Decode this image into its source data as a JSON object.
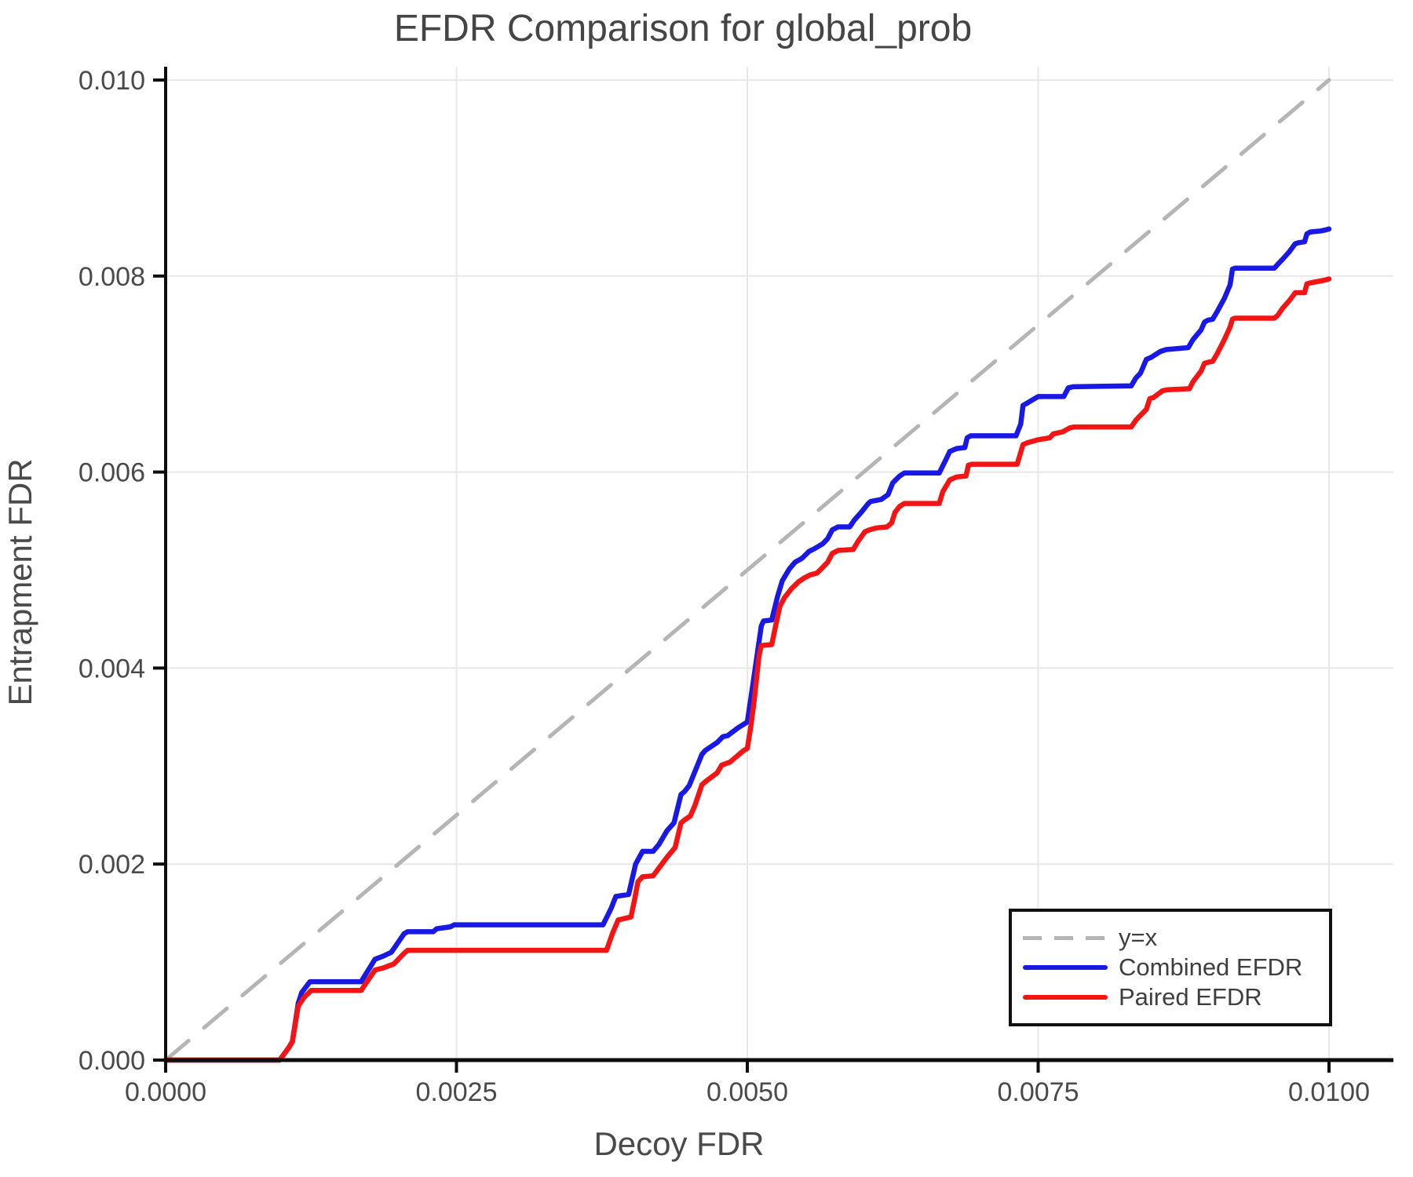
{
  "title": "EFDR Comparison for global_prob",
  "colors": {
    "combined": "#1919e6",
    "paired": "#f51414",
    "identity": "#b5b5b5",
    "grid": "#e8e8e8",
    "axis": "#0d0d0d",
    "text": "#4a4a4a"
  },
  "legend": {
    "identity_label": "y=x",
    "combined_label": "Combined EFDR",
    "paired_label": "Paired EFDR"
  },
  "chart_data": {
    "type": "line",
    "title": "EFDR Comparison for global_prob",
    "xlabel": "Decoy FDR",
    "ylabel": "Entrapment FDR",
    "xlim": [
      0,
      0.010553
    ],
    "ylim": [
      0,
      0.010136
    ],
    "grid": true,
    "legend_position": "bottom-right",
    "x_ticks": [
      {
        "value": 0.0,
        "label": "0.0000"
      },
      {
        "value": 0.0025,
        "label": "0.0025"
      },
      {
        "value": 0.005,
        "label": "0.0050"
      },
      {
        "value": 0.0075,
        "label": "0.0075"
      },
      {
        "value": 0.01,
        "label": "0.0100"
      }
    ],
    "y_ticks": [
      {
        "value": 0.0,
        "label": "0.000"
      },
      {
        "value": 0.002,
        "label": "0.002"
      },
      {
        "value": 0.004,
        "label": "0.004"
      },
      {
        "value": 0.006,
        "label": "0.006"
      },
      {
        "value": 0.008,
        "label": "0.008"
      },
      {
        "value": 0.01,
        "label": "0.010"
      }
    ],
    "series": [
      {
        "name": "y=x",
        "style": "dashed",
        "color": "#b5b5b5",
        "points": [
          [
            0,
            0
          ],
          [
            0.01,
            0.01
          ]
        ]
      },
      {
        "name": "Combined EFDR",
        "style": "solid",
        "color": "#1919e6",
        "points": [
          [
            0,
            0
          ],
          [
            0.00098,
            0
          ],
          [
            0.00106,
            0.00013
          ],
          [
            0.00109,
            0.00019
          ],
          [
            0.00114,
            0.00058
          ],
          [
            0.00117,
            0.00069
          ],
          [
            0.00124,
            0.0008
          ],
          [
            0.00168,
            0.0008
          ],
          [
            0.0018,
            0.00103
          ],
          [
            0.00187,
            0.00106
          ],
          [
            0.00194,
            0.0011
          ],
          [
            0.00205,
            0.00129
          ],
          [
            0.00208,
            0.00131
          ],
          [
            0.0023,
            0.00131
          ],
          [
            0.00233,
            0.00134
          ],
          [
            0.00245,
            0.00136
          ],
          [
            0.00248,
            0.00138
          ],
          [
            0.00376,
            0.00138
          ],
          [
            0.00383,
            0.00155
          ],
          [
            0.00387,
            0.00167
          ],
          [
            0.00398,
            0.00169
          ],
          [
            0.00404,
            0.002
          ],
          [
            0.0041,
            0.00213
          ],
          [
            0.00419,
            0.00213
          ],
          [
            0.00424,
            0.0022
          ],
          [
            0.00431,
            0.00234
          ],
          [
            0.00437,
            0.00242
          ],
          [
            0.00443,
            0.00271
          ],
          [
            0.00446,
            0.00274
          ],
          [
            0.0045,
            0.0028
          ],
          [
            0.00461,
            0.00312
          ],
          [
            0.00464,
            0.00316
          ],
          [
            0.00474,
            0.00324
          ],
          [
            0.00479,
            0.0033
          ],
          [
            0.00483,
            0.00331
          ],
          [
            0.00492,
            0.00339
          ],
          [
            0.005,
            0.00345
          ],
          [
            0.00505,
            0.00385
          ],
          [
            0.00512,
            0.00443
          ],
          [
            0.00514,
            0.00448
          ],
          [
            0.00521,
            0.00449
          ],
          [
            0.00526,
            0.00473
          ],
          [
            0.0053,
            0.00489
          ],
          [
            0.00536,
            0.00501
          ],
          [
            0.00541,
            0.00508
          ],
          [
            0.00547,
            0.00512
          ],
          [
            0.00553,
            0.00519
          ],
          [
            0.00558,
            0.00522
          ],
          [
            0.00565,
            0.00527
          ],
          [
            0.00569,
            0.00532
          ],
          [
            0.00573,
            0.00541
          ],
          [
            0.00578,
            0.00544
          ],
          [
            0.00588,
            0.00544
          ],
          [
            0.00592,
            0.00551
          ],
          [
            0.00598,
            0.00559
          ],
          [
            0.00604,
            0.00568
          ],
          [
            0.00606,
            0.0057
          ],
          [
            0.00615,
            0.00572
          ],
          [
            0.00621,
            0.00577
          ],
          [
            0.00625,
            0.00589
          ],
          [
            0.00631,
            0.00596
          ],
          [
            0.00635,
            0.00599
          ],
          [
            0.00665,
            0.00599
          ],
          [
            0.0067,
            0.00611
          ],
          [
            0.00674,
            0.00621
          ],
          [
            0.0068,
            0.00624
          ],
          [
            0.00687,
            0.00625
          ],
          [
            0.00689,
            0.00635
          ],
          [
            0.00692,
            0.00637
          ],
          [
            0.00731,
            0.00637
          ],
          [
            0.00735,
            0.00649
          ],
          [
            0.00737,
            0.00668
          ],
          [
            0.0074,
            0.0067
          ],
          [
            0.00747,
            0.00675
          ],
          [
            0.0075,
            0.00677
          ],
          [
            0.00772,
            0.00677
          ],
          [
            0.00776,
            0.00686
          ],
          [
            0.0078,
            0.00687
          ],
          [
            0.0083,
            0.00688
          ],
          [
            0.00834,
            0.00696
          ],
          [
            0.00838,
            0.00701
          ],
          [
            0.00843,
            0.00715
          ],
          [
            0.00847,
            0.00717
          ],
          [
            0.00855,
            0.00723
          ],
          [
            0.0086,
            0.00725
          ],
          [
            0.00879,
            0.00727
          ],
          [
            0.00883,
            0.00735
          ],
          [
            0.0089,
            0.00745
          ],
          [
            0.00893,
            0.00753
          ],
          [
            0.00896,
            0.00755
          ],
          [
            0.009,
            0.00756
          ],
          [
            0.00904,
            0.00764
          ],
          [
            0.0091,
            0.00777
          ],
          [
            0.00915,
            0.00791
          ],
          [
            0.00917,
            0.00807
          ],
          [
            0.00919,
            0.00808
          ],
          [
            0.00953,
            0.00808
          ],
          [
            0.00956,
            0.00812
          ],
          [
            0.0096,
            0.00817
          ],
          [
            0.00966,
            0.00825
          ],
          [
            0.00971,
            0.00833
          ],
          [
            0.00974,
            0.00834
          ],
          [
            0.00979,
            0.00835
          ],
          [
            0.00981,
            0.00843
          ],
          [
            0.00984,
            0.00845
          ],
          [
            0.00993,
            0.00846
          ],
          [
            0.00997,
            0.00847
          ],
          [
            0.01,
            0.00848
          ]
        ]
      },
      {
        "name": "Paired EFDR",
        "style": "solid",
        "color": "#f51414",
        "points": [
          [
            0,
            0
          ],
          [
            0.00098,
            0
          ],
          [
            0.00106,
            0.00013
          ],
          [
            0.00109,
            0.00019
          ],
          [
            0.00114,
            0.00055
          ],
          [
            0.00119,
            0.00064
          ],
          [
            0.00125,
            0.00071
          ],
          [
            0.00168,
            0.00071
          ],
          [
            0.0018,
            0.00092
          ],
          [
            0.00187,
            0.00094
          ],
          [
            0.00196,
            0.00098
          ],
          [
            0.00205,
            0.00109
          ],
          [
            0.00208,
            0.00112
          ],
          [
            0.00379,
            0.00112
          ],
          [
            0.00384,
            0.00129
          ],
          [
            0.00389,
            0.00143
          ],
          [
            0.004,
            0.00146
          ],
          [
            0.00403,
            0.00163
          ],
          [
            0.00406,
            0.00182
          ],
          [
            0.0041,
            0.00187
          ],
          [
            0.00419,
            0.00188
          ],
          [
            0.00424,
            0.00196
          ],
          [
            0.00431,
            0.00207
          ],
          [
            0.00438,
            0.00217
          ],
          [
            0.00443,
            0.00242
          ],
          [
            0.00446,
            0.00245
          ],
          [
            0.00451,
            0.00249
          ],
          [
            0.00455,
            0.0026
          ],
          [
            0.00461,
            0.00281
          ],
          [
            0.00465,
            0.00285
          ],
          [
            0.00474,
            0.00293
          ],
          [
            0.00478,
            0.00301
          ],
          [
            0.00485,
            0.00304
          ],
          [
            0.00492,
            0.00311
          ],
          [
            0.00497,
            0.00316
          ],
          [
            0.005,
            0.00318
          ],
          [
            0.00503,
            0.0034
          ],
          [
            0.00506,
            0.00368
          ],
          [
            0.0051,
            0.00412
          ],
          [
            0.00512,
            0.00423
          ],
          [
            0.00521,
            0.00424
          ],
          [
            0.00525,
            0.00447
          ],
          [
            0.00528,
            0.00463
          ],
          [
            0.00532,
            0.00472
          ],
          [
            0.00538,
            0.00481
          ],
          [
            0.00544,
            0.00488
          ],
          [
            0.00549,
            0.00492
          ],
          [
            0.00554,
            0.00495
          ],
          [
            0.0056,
            0.00497
          ],
          [
            0.00565,
            0.00503
          ],
          [
            0.00569,
            0.00508
          ],
          [
            0.00573,
            0.00517
          ],
          [
            0.00578,
            0.0052
          ],
          [
            0.00591,
            0.00521
          ],
          [
            0.00595,
            0.00529
          ],
          [
            0.00601,
            0.00539
          ],
          [
            0.00605,
            0.00541
          ],
          [
            0.00611,
            0.00543
          ],
          [
            0.0062,
            0.00544
          ],
          [
            0.00624,
            0.00548
          ],
          [
            0.00627,
            0.00559
          ],
          [
            0.00631,
            0.00565
          ],
          [
            0.00635,
            0.00568
          ],
          [
            0.00665,
            0.00568
          ],
          [
            0.00668,
            0.0058
          ],
          [
            0.00674,
            0.00592
          ],
          [
            0.0068,
            0.00595
          ],
          [
            0.00688,
            0.00596
          ],
          [
            0.0069,
            0.00607
          ],
          [
            0.00693,
            0.00608
          ],
          [
            0.00732,
            0.00608
          ],
          [
            0.00737,
            0.00628
          ],
          [
            0.00741,
            0.0063
          ],
          [
            0.0075,
            0.00633
          ],
          [
            0.0076,
            0.00635
          ],
          [
            0.00763,
            0.00639
          ],
          [
            0.00771,
            0.00641
          ],
          [
            0.00777,
            0.00645
          ],
          [
            0.00781,
            0.00646
          ],
          [
            0.0083,
            0.00646
          ],
          [
            0.00834,
            0.00653
          ],
          [
            0.00838,
            0.00658
          ],
          [
            0.00843,
            0.00664
          ],
          [
            0.00846,
            0.00675
          ],
          [
            0.00849,
            0.00676
          ],
          [
            0.00857,
            0.00683
          ],
          [
            0.00861,
            0.00684
          ],
          [
            0.0088,
            0.00685
          ],
          [
            0.00883,
            0.00692
          ],
          [
            0.0089,
            0.00703
          ],
          [
            0.00893,
            0.00711
          ],
          [
            0.00896,
            0.00712
          ],
          [
            0.009,
            0.00713
          ],
          [
            0.00904,
            0.00721
          ],
          [
            0.0091,
            0.00735
          ],
          [
            0.00915,
            0.00748
          ],
          [
            0.00917,
            0.00756
          ],
          [
            0.00919,
            0.00757
          ],
          [
            0.00953,
            0.00757
          ],
          [
            0.00956,
            0.0076
          ],
          [
            0.0096,
            0.00767
          ],
          [
            0.00966,
            0.00775
          ],
          [
            0.00971,
            0.00783
          ],
          [
            0.00979,
            0.00783
          ],
          [
            0.00981,
            0.00792
          ],
          [
            0.00984,
            0.00793
          ],
          [
            0.00993,
            0.00795
          ],
          [
            0.00997,
            0.00796
          ],
          [
            0.01,
            0.00797
          ]
        ]
      }
    ]
  }
}
